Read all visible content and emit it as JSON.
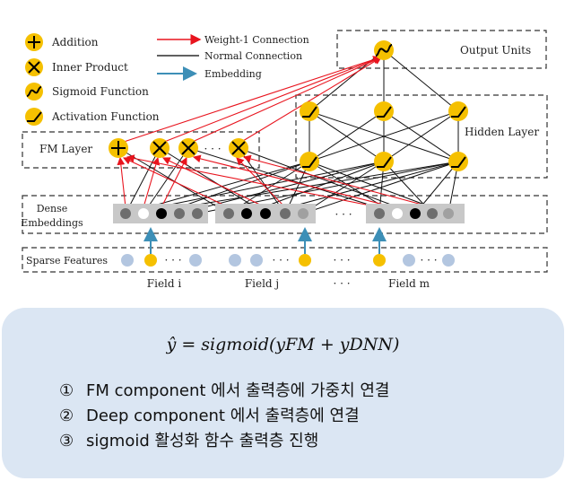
{
  "legend": {
    "addition": "Addition",
    "inner_product": "Inner Product",
    "sigmoid": "Sigmoid Function",
    "activation": "Activation Function",
    "weight1": "Weight-1 Connection",
    "normal": "Normal Connection",
    "embedding": "Embedding"
  },
  "labels": {
    "output_units": "Output Units",
    "hidden_layer": "Hidden Layer",
    "fm_layer": "FM Layer",
    "dense_line1": "Dense",
    "dense_line2": "Embeddings",
    "sparse_features": "Sparse Features",
    "field_i": "Field i",
    "field_j": "Field j",
    "field_m": "Field m",
    "ellipsis": "· · ·"
  },
  "colors": {
    "node_fill": "#f5c000",
    "weight1": "#e8141e",
    "embedding": "#3d8fb7",
    "sparse_dot": "#b3c6e0",
    "sparse_active": "#f5c000",
    "embed_bg": "#c8c8c8",
    "note_bg": "#dbe6f3"
  },
  "note": {
    "formula": "ŷ = sigmoid(yFM + yDNN)",
    "items": [
      {
        "num": "①",
        "text": "FM component 에서 출력층에 가중치 연결"
      },
      {
        "num": "②",
        "text": "Deep component 에서 출력층에 연결"
      },
      {
        "num": "③",
        "text": "sigmoid 활성화 함수 출력층 진행"
      }
    ]
  }
}
